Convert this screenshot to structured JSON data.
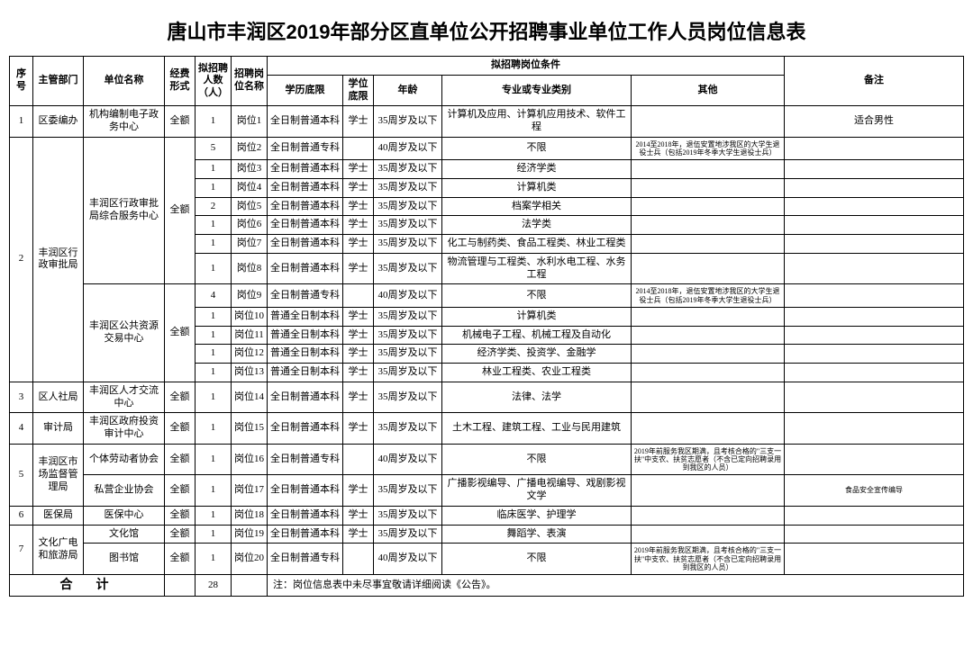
{
  "title": "唐山市丰润区2019年部分区直单位公开招聘事业单位工作人员岗位信息表",
  "headers": {
    "seq": "序号",
    "dept": "主管部门",
    "unit": "单位名称",
    "fund": "经费形式",
    "count": "拟招聘人数（人）",
    "post": "招聘岗位名称",
    "cond_group": "拟招聘岗位条件",
    "edu": "学历底限",
    "degree": "学位底限",
    "age": "年龄",
    "major": "专业或专业类别",
    "other": "其他",
    "remark": "备注"
  },
  "note_other1": "2014至2018年，退伍安置地涉我区的大学生退役士兵（包括2019年冬季大学生退役士兵）",
  "note_other2": "2019年前服务我区期满，且考核合格的\"三支一扶\"中支农、扶贫志愿者（不含已定向招聘录用到我区的人员）",
  "rows": [
    {
      "seq": "1",
      "dept": "区委编办",
      "unit": "机构编制电子政务中心",
      "fund": "全额",
      "count": "1",
      "post": "岗位1",
      "edu": "全日制普通本科",
      "degree": "学士",
      "age": "35周岁及以下",
      "major": "计算机及应用、计算机应用技术、软件工程",
      "other": "",
      "remark": "适合男性"
    },
    {
      "seq": "2",
      "dept": "丰润区行政审批局",
      "unit": "丰润区行政审批局综合服务中心",
      "fund": "全额",
      "count": "5",
      "post": "岗位2",
      "edu": "全日制普通专科",
      "degree": "",
      "age": "40周岁及以下",
      "major": "不限",
      "other_ref": "note_other1",
      "remark": ""
    },
    {
      "count": "1",
      "post": "岗位3",
      "edu": "全日制普通本科",
      "degree": "学士",
      "age": "35周岁及以下",
      "major": "经济学类",
      "other": "",
      "remark": ""
    },
    {
      "count": "1",
      "post": "岗位4",
      "edu": "全日制普通本科",
      "degree": "学士",
      "age": "35周岁及以下",
      "major": "计算机类",
      "other": "",
      "remark": ""
    },
    {
      "count": "2",
      "post": "岗位5",
      "edu": "全日制普通本科",
      "degree": "学士",
      "age": "35周岁及以下",
      "major": "档案学相关",
      "other": "",
      "remark": ""
    },
    {
      "count": "1",
      "post": "岗位6",
      "edu": "全日制普通本科",
      "degree": "学士",
      "age": "35周岁及以下",
      "major": "法学类",
      "other": "",
      "remark": ""
    },
    {
      "count": "1",
      "post": "岗位7",
      "edu": "全日制普通本科",
      "degree": "学士",
      "age": "35周岁及以下",
      "major": "化工与制药类、食品工程类、林业工程类",
      "other": "",
      "remark": ""
    },
    {
      "count": "1",
      "post": "岗位8",
      "edu": "全日制普通本科",
      "degree": "学士",
      "age": "35周岁及以下",
      "major": "物流管理与工程类、水利水电工程、水务工程",
      "other": "",
      "remark": ""
    },
    {
      "unit": "丰润区公共资源交易中心",
      "fund": "全额",
      "count": "4",
      "post": "岗位9",
      "edu": "全日制普通专科",
      "degree": "",
      "age": "40周岁及以下",
      "major": "不限",
      "other_ref": "note_other1",
      "remark": ""
    },
    {
      "count": "1",
      "post": "岗位10",
      "edu": "普通全日制本科",
      "degree": "学士",
      "age": "35周岁及以下",
      "major": "计算机类",
      "other": "",
      "remark": ""
    },
    {
      "count": "1",
      "post": "岗位11",
      "edu": "普通全日制本科",
      "degree": "学士",
      "age": "35周岁及以下",
      "major": "机械电子工程、机械工程及自动化",
      "other": "",
      "remark": ""
    },
    {
      "count": "1",
      "post": "岗位12",
      "edu": "普通全日制本科",
      "degree": "学士",
      "age": "35周岁及以下",
      "major": "经济学类、投资学、金融学",
      "other": "",
      "remark": ""
    },
    {
      "count": "1",
      "post": "岗位13",
      "edu": "普通全日制本科",
      "degree": "学士",
      "age": "35周岁及以下",
      "major": "林业工程类、农业工程类",
      "other": "",
      "remark": ""
    },
    {
      "seq": "3",
      "dept": "区人社局",
      "unit": "丰润区人才交流中心",
      "fund": "全额",
      "count": "1",
      "post": "岗位14",
      "edu": "全日制普通本科",
      "degree": "学士",
      "age": "35周岁及以下",
      "major": "法律、法学",
      "other": "",
      "remark": ""
    },
    {
      "seq": "4",
      "dept": "审计局",
      "unit": "丰润区政府投资审计中心",
      "fund": "全额",
      "count": "1",
      "post": "岗位15",
      "edu": "全日制普通本科",
      "degree": "学士",
      "age": "35周岁及以下",
      "major": "土木工程、建筑工程、工业与民用建筑",
      "other": "",
      "remark": ""
    },
    {
      "seq": "5",
      "dept": "丰润区市场监督管理局",
      "unit": "个体劳动者协会",
      "fund": "全额",
      "count": "1",
      "post": "岗位16",
      "edu": "全日制普通专科",
      "degree": "",
      "age": "40周岁及以下",
      "major": "不限",
      "other_ref": "note_other2",
      "remark": ""
    },
    {
      "unit": "私营企业协会",
      "fund": "全额",
      "count": "1",
      "post": "岗位17",
      "edu": "全日制普通本科",
      "degree": "学士",
      "age": "35周岁及以下",
      "major": "广播影视编导、广播电视编导、戏剧影视文学",
      "other": "",
      "remark": "食品安全宣传编导"
    },
    {
      "seq": "6",
      "dept": "医保局",
      "unit": "医保中心",
      "fund": "全额",
      "count": "1",
      "post": "岗位18",
      "edu": "全日制普通本科",
      "degree": "学士",
      "age": "35周岁及以下",
      "major": "临床医学、护理学",
      "other": "",
      "remark": ""
    },
    {
      "seq": "7",
      "dept": "文化广电和旅游局",
      "unit": "文化馆",
      "fund": "全额",
      "count": "1",
      "post": "岗位19",
      "edu": "全日制普通本科",
      "degree": "学士",
      "age": "35周岁及以下",
      "major": "舞蹈学、表演",
      "other": "",
      "remark": ""
    },
    {
      "unit": "图书馆",
      "fund": "全额",
      "count": "1",
      "post": "岗位20",
      "edu": "全日制普通专科",
      "degree": "",
      "age": "40周岁及以下",
      "major": "不限",
      "other_ref": "note_other2",
      "remark": ""
    }
  ],
  "footer": {
    "sum_label": "合　计",
    "sum_count": "28",
    "note": "注：岗位信息表中未尽事宜敬请详细阅读《公告》。"
  },
  "col_widths": [
    "26px",
    "56px",
    "90px",
    "34px",
    "40px",
    "40px",
    "84px",
    "34px",
    "76px",
    "210px",
    "170px",
    "auto"
  ]
}
